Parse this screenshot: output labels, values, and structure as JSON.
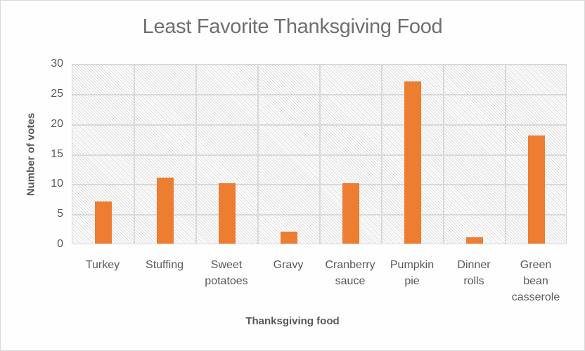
{
  "chart_data": {
    "type": "bar",
    "title": "Least Favorite Thanksgiving Food",
    "xlabel": "Thanksgiving food",
    "ylabel": "Number of votes",
    "categories": [
      "Turkey",
      "Stuffing",
      "Sweet potatoes",
      "Gravy",
      "Cranberry sauce",
      "Pumpkin pie",
      "Dinner rolls",
      "Green bean casserole"
    ],
    "category_lines": [
      [
        "Turkey"
      ],
      [
        "Stuffing"
      ],
      [
        "Sweet",
        "potatoes"
      ],
      [
        "Gravy"
      ],
      [
        "Cranberry",
        "sauce"
      ],
      [
        "Pumpkin",
        "pie"
      ],
      [
        "Dinner",
        "rolls"
      ],
      [
        "Green",
        "bean",
        "casserole"
      ]
    ],
    "values": [
      7,
      11,
      10,
      2,
      10,
      27,
      1,
      18
    ],
    "ylim": [
      0,
      30
    ],
    "yticks": [
      0,
      5,
      10,
      15,
      20,
      25,
      30
    ],
    "grid": true,
    "legend": null,
    "bar_color": "#ed7d31",
    "plot_background": "diagonal-hatch"
  }
}
